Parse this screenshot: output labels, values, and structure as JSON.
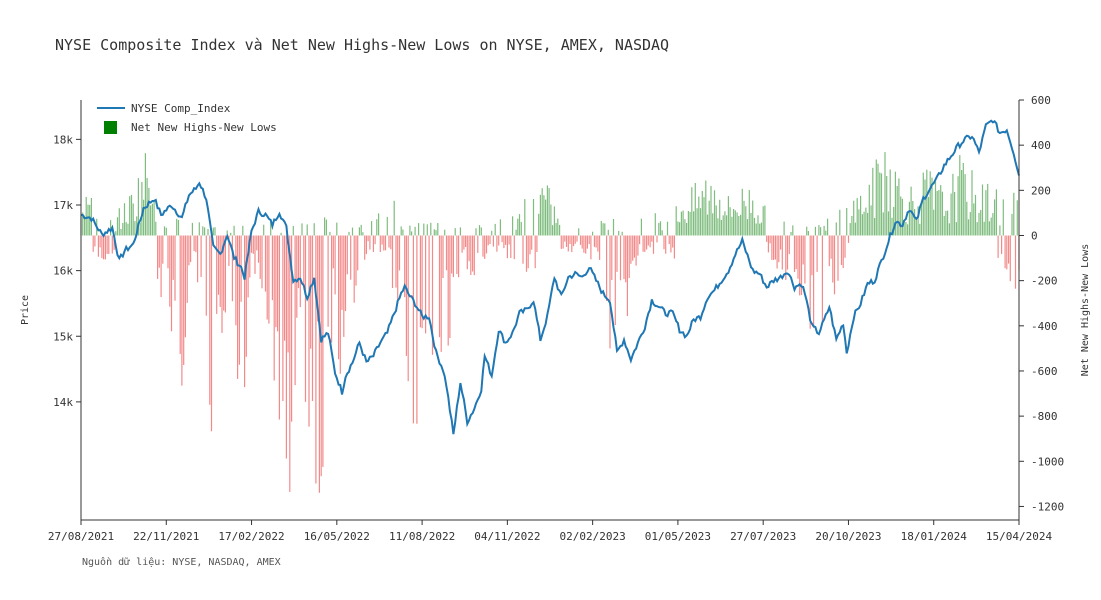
{
  "chart_data": {
    "type": "line+bar",
    "title": "NYSE Composite Index và Net New Highs-New Lows on NYSE, AMEX, NASDAQ",
    "source": "Nguồn dữ liệu: NYSE, NASDAQ, AMEX",
    "ylabel_left": "Price",
    "ylabel_right": "Net New Highs-New Lows",
    "x_ticks": [
      "27/08/2021",
      "22/11/2021",
      "17/02/2022",
      "16/05/2022",
      "11/08/2022",
      "04/11/2022",
      "02/02/2023",
      "01/05/2023",
      "27/07/2023",
      "20/10/2023",
      "18/01/2024",
      "15/04/2024"
    ],
    "y_left_ticks": [
      "14k",
      "15k",
      "16k",
      "17k",
      "18k"
    ],
    "y_left_tick_values": [
      14000,
      15000,
      16000,
      17000,
      18000
    ],
    "ylim_left": [
      12200,
      18600
    ],
    "y_right_ticks": [
      -1200,
      -1000,
      -800,
      -600,
      -400,
      -200,
      0,
      200,
      400,
      600
    ],
    "ylim_right": [
      -1260,
      600
    ],
    "legend": [
      "NYSE Comp_Index",
      "Net New Highs-New Lows"
    ],
    "colors": {
      "line": "#1f77b4",
      "bar_positive": "#3a9a3a",
      "bar_negative": "#f07575",
      "legend_bar": "#008000",
      "axis": "#333333"
    },
    "n_points": 470,
    "line_anchors": [
      [
        0,
        16850
      ],
      [
        6,
        16800
      ],
      [
        12,
        16550
      ],
      [
        18,
        16650
      ],
      [
        22,
        16150
      ],
      [
        25,
        16300
      ],
      [
        30,
        16400
      ],
      [
        36,
        16950
      ],
      [
        42,
        17100
      ],
      [
        46,
        16850
      ],
      [
        52,
        17000
      ],
      [
        58,
        16800
      ],
      [
        62,
        17150
      ],
      [
        66,
        17250
      ],
      [
        68,
        17350
      ],
      [
        72,
        17100
      ],
      [
        76,
        16350
      ],
      [
        80,
        16250
      ],
      [
        84,
        16550
      ],
      [
        88,
        16200
      ],
      [
        92,
        16050
      ],
      [
        94,
        15900
      ],
      [
        98,
        16600
      ],
      [
        102,
        16900
      ],
      [
        106,
        16850
      ],
      [
        110,
        16700
      ],
      [
        114,
        16900
      ],
      [
        118,
        16650
      ],
      [
        122,
        15850
      ],
      [
        126,
        15900
      ],
      [
        130,
        15600
      ],
      [
        134,
        15900
      ],
      [
        138,
        14950
      ],
      [
        142,
        15050
      ],
      [
        146,
        14450
      ],
      [
        150,
        14150
      ],
      [
        152,
        14400
      ],
      [
        156,
        14600
      ],
      [
        160,
        14900
      ],
      [
        164,
        14600
      ],
      [
        168,
        14700
      ],
      [
        172,
        14900
      ],
      [
        176,
        15050
      ],
      [
        180,
        15350
      ],
      [
        184,
        15650
      ],
      [
        186,
        15750
      ],
      [
        188,
        15650
      ],
      [
        192,
        15500
      ],
      [
        196,
        15300
      ],
      [
        200,
        15300
      ],
      [
        204,
        14750
      ],
      [
        208,
        14500
      ],
      [
        210,
        14250
      ],
      [
        214,
        13500
      ],
      [
        218,
        14300
      ],
      [
        222,
        13700
      ],
      [
        226,
        13900
      ],
      [
        230,
        14200
      ],
      [
        232,
        14700
      ],
      [
        236,
        14400
      ],
      [
        240,
        15100
      ],
      [
        244,
        14900
      ],
      [
        248,
        15050
      ],
      [
        252,
        15350
      ],
      [
        256,
        15400
      ],
      [
        260,
        15550
      ],
      [
        264,
        14950
      ],
      [
        268,
        15300
      ],
      [
        272,
        15900
      ],
      [
        276,
        15600
      ],
      [
        280,
        15900
      ],
      [
        284,
        15950
      ],
      [
        288,
        15900
      ],
      [
        292,
        16050
      ],
      [
        296,
        15850
      ],
      [
        300,
        15650
      ],
      [
        304,
        15550
      ],
      [
        308,
        14750
      ],
      [
        312,
        14950
      ],
      [
        316,
        14650
      ],
      [
        320,
        14900
      ],
      [
        324,
        15150
      ],
      [
        328,
        15550
      ],
      [
        332,
        15450
      ],
      [
        336,
        15350
      ],
      [
        340,
        15350
      ],
      [
        344,
        15100
      ],
      [
        348,
        15000
      ],
      [
        352,
        15250
      ],
      [
        356,
        15300
      ],
      [
        360,
        15600
      ],
      [
        364,
        15700
      ],
      [
        368,
        15850
      ],
      [
        372,
        16000
      ],
      [
        376,
        16250
      ],
      [
        380,
        16450
      ],
      [
        382,
        16300
      ],
      [
        386,
        16000
      ],
      [
        390,
        15950
      ],
      [
        394,
        15750
      ],
      [
        398,
        15850
      ],
      [
        402,
        15900
      ],
      [
        406,
        16000
      ],
      [
        410,
        15750
      ],
      [
        414,
        15800
      ],
      [
        416,
        15650
      ],
      [
        420,
        15150
      ],
      [
        424,
        15050
      ],
      [
        428,
        15300
      ],
      [
        430,
        15450
      ],
      [
        434,
        14950
      ],
      [
        438,
        15200
      ],
      [
        440,
        14750
      ],
      [
        444,
        15300
      ],
      [
        448,
        15500
      ],
      [
        452,
        15800
      ],
      [
        456,
        15850
      ],
      [
        460,
        16150
      ],
      [
        464,
        16450
      ],
      [
        468,
        16750
      ],
      [
        472,
        16700
      ],
      [
        476,
        16950
      ],
      [
        480,
        16750
      ],
      [
        484,
        17100
      ],
      [
        488,
        17250
      ],
      [
        492,
        17400
      ],
      [
        496,
        17600
      ],
      [
        500,
        17750
      ],
      [
        504,
        17900
      ],
      [
        508,
        18000
      ],
      [
        512,
        18050
      ],
      [
        516,
        17800
      ],
      [
        520,
        18200
      ],
      [
        524,
        18300
      ],
      [
        528,
        18100
      ],
      [
        532,
        18150
      ],
      [
        536,
        17800
      ],
      [
        539,
        17450
      ]
    ],
    "bars_positive_anchors": [
      [
        0,
        300
      ],
      [
        6,
        150
      ],
      [
        12,
        60
      ],
      [
        18,
        80
      ],
      [
        24,
        120
      ],
      [
        30,
        200
      ],
      [
        36,
        320
      ],
      [
        40,
        420
      ],
      [
        46,
        180
      ],
      [
        52,
        80
      ],
      [
        62,
        80
      ],
      [
        70,
        60
      ],
      [
        84,
        60
      ],
      [
        90,
        40
      ],
      [
        100,
        120
      ],
      [
        106,
        160
      ],
      [
        112,
        60
      ],
      [
        130,
        50
      ],
      [
        136,
        80
      ],
      [
        160,
        60
      ],
      [
        170,
        80
      ],
      [
        180,
        160
      ],
      [
        186,
        60
      ],
      [
        210,
        60
      ],
      [
        220,
        80
      ],
      [
        240,
        60
      ],
      [
        250,
        120
      ],
      [
        260,
        180
      ],
      [
        266,
        240
      ],
      [
        276,
        60
      ],
      [
        290,
        40
      ],
      [
        310,
        80
      ],
      [
        326,
        90
      ],
      [
        336,
        120
      ],
      [
        350,
        180
      ],
      [
        360,
        260
      ],
      [
        366,
        240
      ],
      [
        372,
        160
      ],
      [
        380,
        200
      ],
      [
        386,
        220
      ],
      [
        392,
        120
      ],
      [
        410,
        60
      ],
      [
        420,
        80
      ],
      [
        428,
        60
      ],
      [
        450,
        200
      ],
      [
        456,
        280
      ],
      [
        462,
        440
      ],
      [
        468,
        300
      ],
      [
        474,
        220
      ],
      [
        480,
        200
      ],
      [
        486,
        280
      ],
      [
        492,
        220
      ],
      [
        498,
        180
      ],
      [
        504,
        320
      ],
      [
        510,
        280
      ],
      [
        516,
        200
      ],
      [
        522,
        220
      ],
      [
        528,
        180
      ]
    ],
    "bars_negative_anchors": [
      [
        0,
        0
      ],
      [
        4,
        -60
      ],
      [
        10,
        -120
      ],
      [
        16,
        -80
      ],
      [
        20,
        -60
      ],
      [
        26,
        -40
      ],
      [
        32,
        -80
      ],
      [
        38,
        -160
      ],
      [
        42,
        -80
      ],
      [
        46,
        -240
      ],
      [
        50,
        -320
      ],
      [
        54,
        -400
      ],
      [
        58,
        -560
      ],
      [
        62,
        -200
      ],
      [
        66,
        -120
      ],
      [
        70,
        -480
      ],
      [
        74,
        -900
      ],
      [
        78,
        -600
      ],
      [
        82,
        -280
      ],
      [
        86,
        -400
      ],
      [
        90,
        -700
      ],
      [
        94,
        -800
      ],
      [
        98,
        -160
      ],
      [
        102,
        -120
      ],
      [
        106,
        -260
      ],
      [
        110,
        -520
      ],
      [
        114,
        -700
      ],
      [
        118,
        -1050
      ],
      [
        122,
        -850
      ],
      [
        126,
        -400
      ],
      [
        130,
        -700
      ],
      [
        134,
        -1100
      ],
      [
        138,
        -980
      ],
      [
        142,
        -500
      ],
      [
        146,
        -300
      ],
      [
        150,
        -600
      ],
      [
        154,
        -420
      ],
      [
        158,
        -200
      ],
      [
        162,
        -100
      ],
      [
        166,
        -60
      ],
      [
        176,
        -80
      ],
      [
        180,
        -260
      ],
      [
        184,
        -420
      ],
      [
        188,
        -600
      ],
      [
        192,
        -760
      ],
      [
        196,
        -700
      ],
      [
        200,
        -840
      ],
      [
        204,
        -680
      ],
      [
        208,
        -400
      ],
      [
        212,
        -460
      ],
      [
        216,
        -260
      ],
      [
        220,
        -120
      ],
      [
        226,
        -160
      ],
      [
        232,
        -100
      ],
      [
        244,
        -80
      ],
      [
        252,
        -120
      ],
      [
        260,
        -180
      ],
      [
        266,
        -40
      ],
      [
        280,
        -60
      ],
      [
        296,
        -100
      ],
      [
        300,
        -260
      ],
      [
        304,
        -480
      ],
      [
        308,
        -320
      ],
      [
        312,
        -400
      ],
      [
        316,
        -200
      ],
      [
        320,
        -120
      ],
      [
        324,
        -60
      ],
      [
        336,
        -100
      ],
      [
        344,
        -80
      ],
      [
        352,
        -60
      ],
      [
        362,
        -80
      ],
      [
        372,
        -60
      ],
      [
        386,
        -120
      ],
      [
        392,
        -60
      ],
      [
        402,
        -140
      ],
      [
        406,
        -200
      ],
      [
        410,
        -300
      ],
      [
        414,
        -340
      ],
      [
        418,
        -420
      ],
      [
        422,
        -380
      ],
      [
        426,
        -440
      ],
      [
        430,
        -260
      ],
      [
        434,
        -220
      ],
      [
        440,
        -100
      ],
      [
        446,
        -60
      ],
      [
        460,
        -40
      ],
      [
        496,
        -40
      ],
      [
        524,
        -120
      ],
      [
        530,
        -140
      ],
      [
        536,
        -200
      ]
    ],
    "bar_seed": 7
  }
}
